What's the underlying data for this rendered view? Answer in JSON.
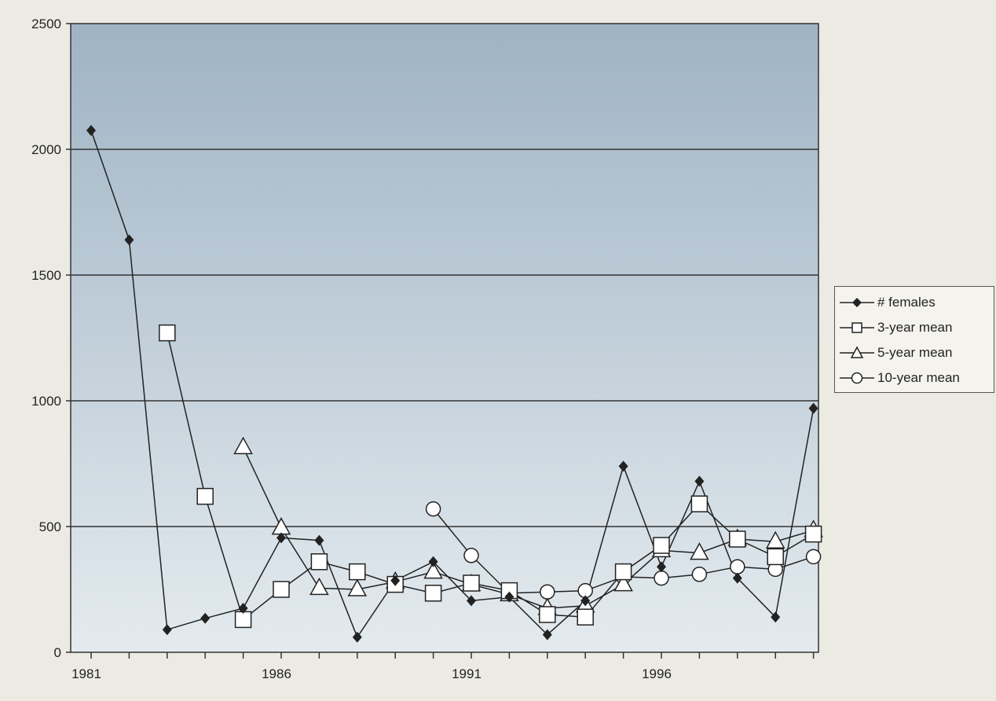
{
  "chart_data": {
    "type": "line",
    "title": "",
    "xlabel": "",
    "ylabel": "",
    "ylim": [
      0,
      2500
    ],
    "xlim": [
      1981,
      2000
    ],
    "y_ticks": [
      "0",
      "500",
      "1000",
      "1500",
      "2000",
      "2500"
    ],
    "x_ticks": [
      "1981",
      "1986",
      "1991",
      "1996"
    ],
    "grid": "horizontal",
    "legend_position": "right",
    "colors": {
      "plot_top": "#9fb3c4",
      "plot_bottom": "#e4ebef",
      "line": "#222222",
      "marker_fill": "#ffffff"
    },
    "series": [
      {
        "name": "# females",
        "marker": "diamond",
        "x": [
          1981,
          1982,
          1983,
          1984,
          1985,
          1986,
          1987,
          1988,
          1989,
          1990,
          1991,
          1992,
          1993,
          1994,
          1995,
          1996,
          1997,
          1998,
          1999,
          2000
        ],
        "y": [
          2075,
          1640,
          90,
          135,
          175,
          455,
          445,
          60,
          285,
          360,
          205,
          220,
          70,
          205,
          740,
          340,
          680,
          295,
          140,
          970
        ]
      },
      {
        "name": "3-year mean",
        "marker": "square",
        "x": [
          1983,
          1984,
          1985,
          1986,
          1987,
          1988,
          1989,
          1990,
          1991,
          1992,
          1993,
          1994,
          1995,
          1996,
          1997,
          1998,
          1999,
          2000
        ],
        "y": [
          1270,
          620,
          130,
          250,
          360,
          320,
          270,
          235,
          275,
          245,
          150,
          140,
          320,
          425,
          590,
          450,
          380,
          470
        ]
      },
      {
        "name": "5-year mean",
        "marker": "triangle",
        "x": [
          1985,
          1986,
          1987,
          1988,
          1989,
          1990,
          1991,
          1992,
          1993,
          1994,
          1995,
          1996,
          1997,
          1998,
          1999,
          2000
        ],
        "y": [
          815,
          495,
          255,
          250,
          280,
          320,
          270,
          230,
          175,
          185,
          270,
          405,
          395,
          450,
          440,
          485
        ]
      },
      {
        "name": "10-year mean",
        "marker": "circle",
        "x": [
          1990,
          1991,
          1992,
          1993,
          1994,
          1995,
          1996,
          1997,
          1998,
          1999,
          2000
        ],
        "y": [
          570,
          385,
          235,
          240,
          245,
          300,
          295,
          310,
          340,
          330,
          380
        ]
      }
    ]
  }
}
